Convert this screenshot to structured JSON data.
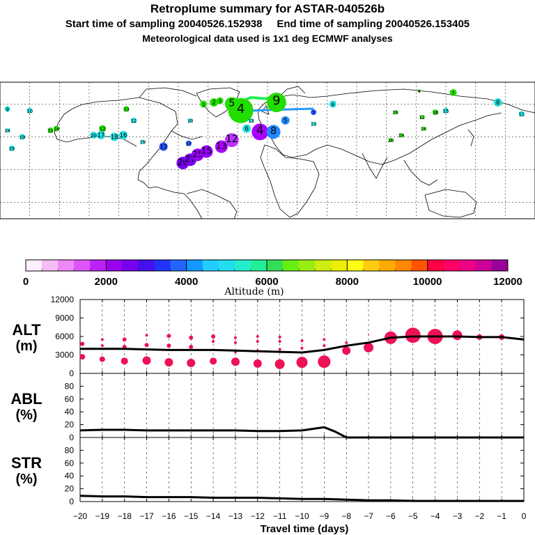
{
  "header": {
    "title": "Retroplume summary for ASTAR-040526b",
    "subtitle": "Start time of sampling 20040526.152938     End time of sampling 20040526.153405",
    "subtitle2": "Meteorological data used is 1x1 deg ECMWF analyses"
  },
  "map": {
    "labels": [
      {
        "text": "1",
        "lon": -43,
        "lat": 70,
        "color": "#22dd00",
        "size": 5
      },
      {
        "text": "2",
        "lon": -36,
        "lat": 71,
        "color": "#22dd00",
        "size": 6
      },
      {
        "text": "3",
        "lon": -32,
        "lat": 72,
        "color": "#22dd00",
        "size": 5
      },
      {
        "text": "4",
        "lon": -18,
        "lat": 66,
        "color": "#22dd00",
        "size": 18
      },
      {
        "text": "5",
        "lon": -24,
        "lat": 70,
        "color": "#22dd00",
        "size": 10
      },
      {
        "text": "9",
        "lon": 6,
        "lat": 71,
        "color": "#22dd00",
        "size": 14
      },
      {
        "text": "7",
        "lon": 31,
        "lat": 65,
        "color": "#2255ff",
        "size": 4
      },
      {
        "text": "8",
        "lon": 44,
        "lat": 70,
        "color": "#22dddd",
        "size": 5
      },
      {
        "text": "8",
        "lon": 155,
        "lat": 71,
        "color": "#22dddd",
        "size": 6
      },
      {
        "text": "7",
        "lon": 125,
        "lat": 77,
        "color": "#22dd00",
        "size": 5
      },
      {
        "text": "4",
        "lon": 102,
        "lat": 78,
        "color": "#22dd00",
        "size": 2
      },
      {
        "text": "9",
        "lon": -175,
        "lat": 67,
        "color": "#22dddd",
        "size": 4
      },
      {
        "text": "10",
        "lon": -160,
        "lat": 66,
        "color": "#22dddd",
        "size": 4
      },
      {
        "text": "11",
        "lon": 171,
        "lat": 64,
        "color": "#22dddd",
        "size": 4
      },
      {
        "text": "12",
        "lon": -111,
        "lat": 55,
        "color": "#22dd00",
        "size": 5
      },
      {
        "text": "13",
        "lon": -95,
        "lat": 67,
        "color": "#22dd00",
        "size": 4
      },
      {
        "text": "14",
        "lon": -142,
        "lat": 55,
        "color": "#22dd00",
        "size": 4
      },
      {
        "text": "11",
        "lon": -146,
        "lat": 54,
        "color": "#22dd00",
        "size": 4
      },
      {
        "text": "14",
        "lon": -175,
        "lat": 54,
        "color": "#22dddd",
        "size": 3
      },
      {
        "text": "17",
        "lon": -112,
        "lat": 51,
        "color": "#22dddd",
        "size": 6
      },
      {
        "text": "18",
        "lon": -103,
        "lat": 50,
        "color": "#22dddd",
        "size": 6
      },
      {
        "text": "16",
        "lon": -97,
        "lat": 51,
        "color": "#22dddd",
        "size": 6
      },
      {
        "text": "20",
        "lon": -117,
        "lat": 51,
        "color": "#22dddd",
        "size": 5
      },
      {
        "text": "19",
        "lon": -165,
        "lat": 50,
        "color": "#22dddd",
        "size": 4
      },
      {
        "text": "15",
        "lon": -172,
        "lat": 43,
        "color": "#22dddd",
        "size": 4
      },
      {
        "text": "10",
        "lon": -52,
        "lat": 60,
        "color": "#22dddd",
        "size": 3
      },
      {
        "text": "19",
        "lon": -84,
        "lat": 47,
        "color": "#22dddd",
        "size": 3
      },
      {
        "text": "12",
        "lon": -90,
        "lat": 60,
        "color": "#22dddd",
        "size": 4
      },
      {
        "text": "17",
        "lon": -53,
        "lat": 46,
        "color": "#2255ff",
        "size": 4
      },
      {
        "text": "13",
        "lon": -70,
        "lat": 44,
        "color": "#2255ff",
        "size": 6
      },
      {
        "text": "20",
        "lon": -57,
        "lat": 34,
        "color": "#7700ee",
        "size": 9
      },
      {
        "text": "27",
        "lon": -52,
        "lat": 36,
        "color": "#7700ee",
        "size": 9
      },
      {
        "text": "25",
        "lon": -47,
        "lat": 39,
        "color": "#9900ff",
        "size": 9
      },
      {
        "text": "15",
        "lon": -41,
        "lat": 41,
        "color": "#9900ff",
        "size": 9
      },
      {
        "text": "13",
        "lon": -31,
        "lat": 44,
        "color": "#aa00ff",
        "size": 9
      },
      {
        "text": "12",
        "lon": -24,
        "lat": 48,
        "color": "#bb33ff",
        "size": 10
      },
      {
        "text": "4",
        "lon": -5,
        "lat": 53,
        "color": "#aa00ff",
        "size": 12
      },
      {
        "text": "6",
        "lon": -14,
        "lat": 55,
        "color": "#22dddd",
        "size": 6
      },
      {
        "text": "8",
        "lon": 4,
        "lat": 53,
        "color": "#2288ff",
        "size": 10
      },
      {
        "text": "5",
        "lon": 12,
        "lat": 60,
        "color": "#2288ff",
        "size": 6
      },
      {
        "text": "13",
        "lon": -11,
        "lat": 60,
        "color": "#22dddd",
        "size": 3
      },
      {
        "text": "13",
        "lon": 31,
        "lat": 58,
        "color": "#22dddd",
        "size": 3
      },
      {
        "text": "19",
        "lon": 86,
        "lat": 65,
        "color": "#22dd00",
        "size": 3
      },
      {
        "text": "12",
        "lon": 104,
        "lat": 62,
        "color": "#22dd00",
        "size": 3
      },
      {
        "text": "16",
        "lon": 113,
        "lat": 65,
        "color": "#22dd00",
        "size": 4
      },
      {
        "text": "15",
        "lon": 120,
        "lat": 66,
        "color": "#22dddd",
        "size": 4
      },
      {
        "text": "14",
        "lon": 105,
        "lat": 55,
        "color": "#22dd00",
        "size": 3
      },
      {
        "text": "19",
        "lon": 90,
        "lat": 51,
        "color": "#22dd00",
        "size": 3
      },
      {
        "text": "20",
        "lon": 83,
        "lat": 48,
        "color": "#22dd00",
        "size": 3
      }
    ]
  },
  "colorbar": {
    "colors": [
      "#ffeeff",
      "#f7bbf7",
      "#ee88f7",
      "#dd55f7",
      "#bb22f7",
      "#9900ee",
      "#7700ee",
      "#4411ee",
      "#2233ff",
      "#2266ff",
      "#1199ff",
      "#22ccff",
      "#22ddee",
      "#22eecc",
      "#22ee99",
      "#33dd55",
      "#66ee11",
      "#99ee11",
      "#ccee11",
      "#eeee00",
      "#ffff11",
      "#ffcc11",
      "#ffaa00",
      "#ff8800",
      "#ff5500",
      "#ff0044",
      "#ff0066",
      "#ee0088",
      "#cc0099",
      "#990099"
    ],
    "tick_labels": [
      "0",
      "2000",
      "4000",
      "6000",
      "8000",
      "10000",
      "12000"
    ],
    "ticks": [
      0,
      2000,
      4000,
      6000,
      8000,
      10000,
      12000
    ],
    "min": 0,
    "max": 12000,
    "xlabel": "Altitude (m)"
  },
  "chart_data": [
    {
      "type": "line",
      "name": "ALT",
      "ylabel_line1": "ALT",
      "ylabel_line2": "(m)",
      "ylim": [
        0,
        12000
      ],
      "ytick_labels": [
        "12000",
        "9000",
        "6000",
        "3000",
        "0"
      ],
      "yticks": [
        12000,
        9000,
        6000,
        3000,
        0
      ],
      "series": [
        {
          "name": "mean altitude",
          "x": [
            -20,
            -19,
            -18,
            -17,
            -16,
            -15,
            -14,
            -13,
            -12,
            -11,
            -10,
            -9,
            -8,
            -7,
            -6,
            -5,
            -4,
            -3,
            -2,
            -1,
            0
          ],
          "values": [
            4000,
            4000,
            4000,
            3900,
            3800,
            3800,
            3800,
            3700,
            3600,
            3500,
            3400,
            3800,
            4500,
            5000,
            5800,
            6000,
            6000,
            6000,
            5900,
            5900,
            5500
          ]
        }
      ],
      "bubbles": [
        {
          "x": -19.9,
          "y": 2700,
          "size": 4
        },
        {
          "x": -19.9,
          "y": 4800,
          "size": 3
        },
        {
          "x": -19,
          "y": 2300,
          "size": 4
        },
        {
          "x": -19,
          "y": 4500,
          "size": 2
        },
        {
          "x": -19,
          "y": 5500,
          "size": 2
        },
        {
          "x": -18,
          "y": 2000,
          "size": 5
        },
        {
          "x": -18,
          "y": 4300,
          "size": 3
        },
        {
          "x": -18,
          "y": 5500,
          "size": 3
        },
        {
          "x": -17,
          "y": 2100,
          "size": 6
        },
        {
          "x": -17,
          "y": 4600,
          "size": 3
        },
        {
          "x": -17,
          "y": 6200,
          "size": 2
        },
        {
          "x": -16,
          "y": 1800,
          "size": 6
        },
        {
          "x": -16,
          "y": 4500,
          "size": 3
        },
        {
          "x": -16,
          "y": 6100,
          "size": 3
        },
        {
          "x": -15,
          "y": 1700,
          "size": 6
        },
        {
          "x": -15,
          "y": 4300,
          "size": 3
        },
        {
          "x": -15,
          "y": 5800,
          "size": 3
        },
        {
          "x": -14,
          "y": 2000,
          "size": 5
        },
        {
          "x": -14,
          "y": 5200,
          "size": 2
        },
        {
          "x": -14,
          "y": 6000,
          "size": 3
        },
        {
          "x": -13,
          "y": 1900,
          "size": 6
        },
        {
          "x": -13,
          "y": 3500,
          "size": 2
        },
        {
          "x": -13,
          "y": 5000,
          "size": 2
        },
        {
          "x": -13,
          "y": 5800,
          "size": 2
        },
        {
          "x": -12,
          "y": 1600,
          "size": 6
        },
        {
          "x": -12,
          "y": 3700,
          "size": 2
        },
        {
          "x": -12,
          "y": 5200,
          "size": 2
        },
        {
          "x": -12,
          "y": 6000,
          "size": 2
        },
        {
          "x": -11,
          "y": 1500,
          "size": 7
        },
        {
          "x": -11,
          "y": 3900,
          "size": 2
        },
        {
          "x": -11,
          "y": 5200,
          "size": 2
        },
        {
          "x": -11,
          "y": 5900,
          "size": 2
        },
        {
          "x": -10,
          "y": 1800,
          "size": 8
        },
        {
          "x": -10,
          "y": 4100,
          "size": 2
        },
        {
          "x": -10,
          "y": 5300,
          "size": 2
        },
        {
          "x": -9,
          "y": 1900,
          "size": 9
        },
        {
          "x": -9,
          "y": 4500,
          "size": 2
        },
        {
          "x": -9,
          "y": 5500,
          "size": 2
        },
        {
          "x": -8,
          "y": 3700,
          "size": 6
        },
        {
          "x": -8,
          "y": 5000,
          "size": 2
        },
        {
          "x": -7,
          "y": 4200,
          "size": 7
        },
        {
          "x": -7,
          "y": 6300,
          "size": 1
        },
        {
          "x": -6,
          "y": 5800,
          "size": 9
        },
        {
          "x": -5,
          "y": 6200,
          "size": 11
        },
        {
          "x": -4,
          "y": 6000,
          "size": 11
        },
        {
          "x": -3,
          "y": 6200,
          "size": 7
        },
        {
          "x": -2,
          "y": 5900,
          "size": 4
        },
        {
          "x": -1,
          "y": 5900,
          "size": 4
        }
      ]
    },
    {
      "type": "line",
      "name": "ABL",
      "ylabel_line1": "ABL",
      "ylabel_line2": "(%)",
      "ylim": [
        0,
        100
      ],
      "ytick_labels": [
        "80",
        "60",
        "40",
        "20",
        "0"
      ],
      "yticks": [
        80,
        60,
        40,
        20,
        0
      ],
      "series": [
        {
          "name": "fraction in boundary layer",
          "x": [
            -20,
            -19,
            -18,
            -17,
            -16,
            -15,
            -14,
            -13,
            -12,
            -11,
            -10,
            -9.4,
            -9,
            -8.5,
            -8,
            -7,
            -6,
            -5,
            -4,
            -3,
            -2,
            -1,
            0
          ],
          "values": [
            11,
            12,
            12,
            11,
            11,
            11,
            11,
            11,
            10,
            10,
            11,
            14,
            16,
            9,
            0,
            0,
            0,
            0,
            0,
            0,
            0,
            0,
            0
          ]
        }
      ]
    },
    {
      "type": "line",
      "name": "STR",
      "ylabel_line1": "STR",
      "ylabel_line2": "(%)",
      "ylim": [
        0,
        100
      ],
      "ytick_labels": [
        "80",
        "60",
        "40",
        "20",
        "0"
      ],
      "yticks": [
        80,
        60,
        40,
        20,
        0
      ],
      "xlabel": "Travel time (days)",
      "x_ticks": [
        -20,
        -19,
        -18,
        -17,
        -16,
        -15,
        -14,
        -13,
        -12,
        -11,
        -10,
        -9,
        -8,
        -7,
        -6,
        -5,
        -4,
        -3,
        -2,
        -1,
        0
      ],
      "x_tick_labels": [
        "−20",
        "−19",
        "−18",
        "−17",
        "−16",
        "−15",
        "−14",
        "−13",
        "−12",
        "−11",
        "−10",
        "−9",
        "−8",
        "−7",
        "−6",
        "−5",
        "−4",
        "−3",
        "−2",
        "−1",
        "0"
      ],
      "xlim": [
        -20,
        0
      ],
      "series": [
        {
          "name": "fraction in stratosphere",
          "x": [
            -20,
            -19,
            -18,
            -17,
            -16,
            -15,
            -14,
            -13,
            -12,
            -11,
            -10,
            -9,
            -8,
            -7,
            -6,
            -5,
            -4,
            -3,
            -2,
            -1,
            0
          ],
          "values": [
            9,
            8,
            8,
            7,
            7,
            7,
            6,
            6,
            6,
            5,
            4,
            4,
            3,
            2,
            2,
            1,
            1,
            1,
            1,
            1,
            1
          ]
        }
      ]
    }
  ]
}
